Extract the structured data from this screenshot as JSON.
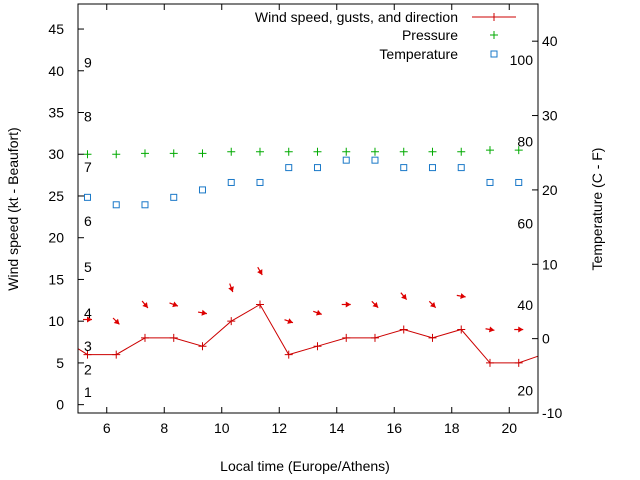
{
  "chart_data": {
    "type": "line",
    "xlabel": "Local time (Europe/Athens)",
    "ylabel_left": "Wind speed (kt - Beaufort)",
    "ylabel_right": "Temperature (C - F)",
    "xlim": [
      5,
      21
    ],
    "ylim_left": [
      -1,
      48
    ],
    "ylim_right": [
      -10,
      45
    ],
    "x_ticks": [
      {
        "v": 6,
        "label": "6"
      },
      {
        "v": 8,
        "label": "8"
      },
      {
        "v": 10,
        "label": "10"
      },
      {
        "v": 12,
        "label": "12"
      },
      {
        "v": 14,
        "label": "14"
      },
      {
        "v": 16,
        "label": "16"
      },
      {
        "v": 18,
        "label": "18"
      },
      {
        "v": 20,
        "label": "20"
      }
    ],
    "y_left_ticks": [
      {
        "v": 0,
        "label": "0"
      },
      {
        "v": 5,
        "label": "5"
      },
      {
        "v": 10,
        "label": "10"
      },
      {
        "v": 15,
        "label": "15"
      },
      {
        "v": 20,
        "label": "20"
      },
      {
        "v": 25,
        "label": "25"
      },
      {
        "v": 30,
        "label": "30"
      },
      {
        "v": 35,
        "label": "35"
      },
      {
        "v": 40,
        "label": "40"
      },
      {
        "v": 45,
        "label": "45"
      }
    ],
    "y_right_ticks": [
      {
        "v": -10,
        "label": "-10"
      },
      {
        "v": 0,
        "label": "0"
      },
      {
        "v": 10,
        "label": "10"
      },
      {
        "v": 20,
        "label": "20"
      },
      {
        "v": 30,
        "label": "30"
      },
      {
        "v": 40,
        "label": "40"
      }
    ],
    "beaufort_labels": [
      {
        "v": 1.5,
        "label": "1"
      },
      {
        "v": 4.2,
        "label": "2"
      },
      {
        "v": 7,
        "label": "3"
      },
      {
        "v": 11,
        "label": "4"
      },
      {
        "v": 16.5,
        "label": "5"
      },
      {
        "v": 22,
        "label": "6"
      },
      {
        "v": 28.5,
        "label": "7"
      },
      {
        "v": 34.5,
        "label": "8"
      },
      {
        "v": 41,
        "label": "9"
      }
    ],
    "fahrenheit_labels": [
      {
        "v": -7,
        "label": "20"
      },
      {
        "v": 4.5,
        "label": "40"
      },
      {
        "v": 15.5,
        "label": "60"
      },
      {
        "v": 26.5,
        "label": "80"
      },
      {
        "v": 37.5,
        "label": "100"
      }
    ],
    "legend_position": "top-right",
    "series": [
      {
        "name": "Wind speed, gusts, and direction",
        "axis": "left",
        "color": "#cc0000",
        "x": [
          5,
          5.33,
          6.33,
          7.33,
          8.33,
          9.33,
          10.33,
          11.33,
          12.33,
          13.33,
          14.33,
          15.33,
          16.33,
          17.33,
          18.33,
          19.33,
          20.33,
          21
        ],
        "values": [
          6.7,
          6,
          6,
          8,
          8,
          7,
          10,
          12,
          6,
          7,
          8,
          8,
          9,
          8,
          9,
          5,
          5,
          5.8
        ]
      },
      {
        "name": "Pressure",
        "axis": "left",
        "color": "#00aa00",
        "x": [
          5.33,
          6.33,
          7.33,
          8.33,
          9.33,
          10.33,
          11.33,
          12.33,
          13.33,
          14.33,
          15.33,
          16.33,
          17.33,
          18.33,
          19.33,
          20.33
        ],
        "values": [
          30,
          30,
          30.1,
          30.1,
          30.1,
          30.3,
          30.3,
          30.3,
          30.3,
          30.3,
          30.3,
          30.3,
          30.3,
          30.3,
          30.5,
          30.5
        ]
      },
      {
        "name": "Temperature",
        "axis": "right",
        "color": "#1a78c8",
        "x": [
          5.33,
          6.33,
          7.33,
          8.33,
          9.33,
          10.33,
          11.33,
          12.33,
          13.33,
          14.33,
          15.33,
          16.33,
          17.33,
          18.33,
          19.33,
          20.33
        ],
        "values": [
          19,
          18,
          18,
          19,
          20,
          21,
          21,
          23,
          23,
          24,
          24,
          23,
          23,
          23,
          21,
          21
        ]
      }
    ],
    "direction_arrows": {
      "color": "#dd0000",
      "x": [
        5.33,
        6.33,
        7.33,
        8.33,
        9.33,
        10.33,
        11.33,
        12.33,
        13.33,
        14.33,
        15.33,
        16.33,
        17.33,
        18.33,
        19.33,
        20.33
      ],
      "values": [
        10.2,
        10,
        12,
        12,
        11,
        14,
        16,
        10,
        11,
        12,
        12,
        13,
        12,
        13,
        9,
        9
      ],
      "angle_deg": [
        90,
        45,
        40,
        70,
        80,
        20,
        30,
        70,
        70,
        90,
        45,
        40,
        45,
        80,
        80,
        90
      ]
    }
  }
}
